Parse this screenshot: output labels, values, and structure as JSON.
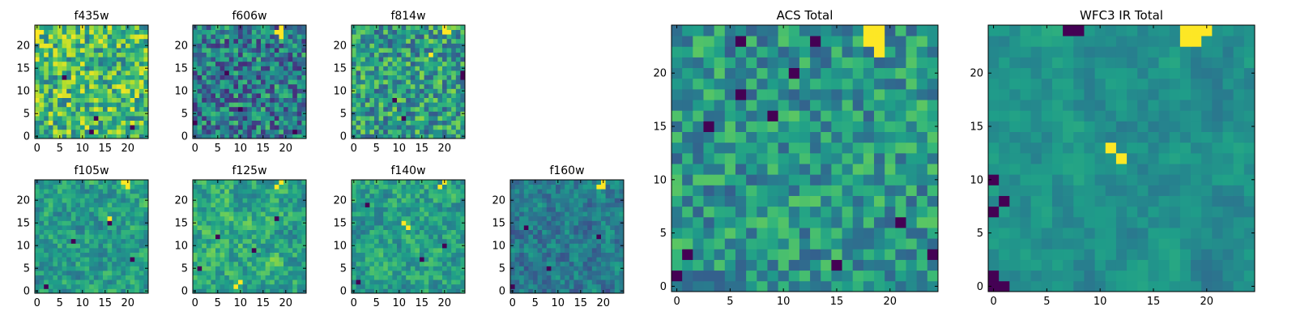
{
  "figure": {
    "colormap": "viridis",
    "frame_color": "#000000"
  },
  "chart_data": [
    {
      "type": "heatmap",
      "title": "f435w",
      "grid_size": [
        25,
        25
      ],
      "xticks": [
        0,
        5,
        10,
        15,
        20
      ],
      "yticks": [
        0,
        5,
        10,
        15,
        20
      ],
      "xlim": [
        -0.5,
        24.5
      ],
      "ylim": [
        -0.5,
        24.5
      ],
      "seed": 11,
      "base": 0.68,
      "noise": 0.3,
      "smooth": 0,
      "bright_spots": [
        [
          23,
          1
        ],
        [
          22,
          0
        ],
        [
          23,
          0
        ]
      ],
      "dark_spots": [
        [
          1,
          12
        ],
        [
          4,
          13
        ],
        [
          2,
          21
        ],
        [
          13,
          6
        ]
      ]
    },
    {
      "type": "heatmap",
      "title": "f606w",
      "grid_size": [
        25,
        25
      ],
      "xticks": [
        0,
        5,
        10,
        15,
        20
      ],
      "yticks": [
        0,
        5,
        10,
        15,
        20
      ],
      "xlim": [
        -0.5,
        24.5
      ],
      "ylim": [
        -0.5,
        24.5
      ],
      "seed": 23,
      "base": 0.42,
      "noise": 0.3,
      "smooth": 0,
      "bright_spots": [
        [
          23,
          18
        ],
        [
          23,
          19
        ],
        [
          24,
          19
        ],
        [
          22,
          19
        ]
      ],
      "dark_spots": [
        [
          3,
          0
        ],
        [
          14,
          7
        ],
        [
          6,
          10
        ],
        [
          1,
          22
        ]
      ]
    },
    {
      "type": "heatmap",
      "title": "f814w",
      "grid_size": [
        25,
        25
      ],
      "xticks": [
        0,
        5,
        10,
        15,
        20
      ],
      "yticks": [
        0,
        5,
        10,
        15,
        20
      ],
      "xlim": [
        -0.5,
        24.5
      ],
      "ylim": [
        -0.5,
        24.5
      ],
      "seed": 37,
      "base": 0.55,
      "noise": 0.28,
      "smooth": 0,
      "bright_spots": [
        [
          23,
          20
        ],
        [
          24,
          20
        ],
        [
          23,
          21
        ],
        [
          18,
          17
        ]
      ],
      "dark_spots": [
        [
          14,
          24
        ],
        [
          13,
          24
        ],
        [
          4,
          11
        ],
        [
          8,
          9
        ]
      ]
    },
    {
      "type": "heatmap",
      "title": "f105w",
      "grid_size": [
        25,
        25
      ],
      "xticks": [
        0,
        5,
        10,
        15,
        20
      ],
      "yticks": [
        0,
        5,
        10,
        15,
        20
      ],
      "xlim": [
        -0.5,
        24.5
      ],
      "ylim": [
        -0.5,
        24.5
      ],
      "seed": 41,
      "base": 0.55,
      "noise": 0.26,
      "smooth": 1,
      "bright_spots": [
        [
          23,
          20
        ],
        [
          24,
          19
        ],
        [
          24,
          20
        ],
        [
          16,
          16
        ]
      ],
      "dark_spots": [
        [
          1,
          2
        ],
        [
          11,
          8
        ],
        [
          15,
          16
        ],
        [
          7,
          21
        ]
      ]
    },
    {
      "type": "heatmap",
      "title": "f125w",
      "grid_size": [
        25,
        25
      ],
      "xticks": [
        0,
        5,
        10,
        15,
        20
      ],
      "yticks": [
        0,
        5,
        10,
        15,
        20
      ],
      "xlim": [
        -0.5,
        24.5
      ],
      "ylim": [
        -0.5,
        24.5
      ],
      "seed": 53,
      "base": 0.6,
      "noise": 0.28,
      "smooth": 1,
      "bright_spots": [
        [
          23,
          18
        ],
        [
          24,
          19
        ],
        [
          1,
          9
        ],
        [
          2,
          10
        ]
      ],
      "dark_spots": [
        [
          5,
          1
        ],
        [
          12,
          5
        ],
        [
          9,
          13
        ],
        [
          16,
          18
        ]
      ]
    },
    {
      "type": "heatmap",
      "title": "f140w",
      "grid_size": [
        25,
        25
      ],
      "xticks": [
        0,
        5,
        10,
        15,
        20
      ],
      "yticks": [
        0,
        5,
        10,
        15,
        20
      ],
      "xlim": [
        -0.5,
        24.5
      ],
      "ylim": [
        -0.5,
        24.5
      ],
      "seed": 67,
      "base": 0.57,
      "noise": 0.26,
      "smooth": 1,
      "bright_spots": [
        [
          23,
          19
        ],
        [
          24,
          20
        ],
        [
          14,
          12
        ],
        [
          15,
          11
        ]
      ],
      "dark_spots": [
        [
          2,
          1
        ],
        [
          19,
          3
        ],
        [
          7,
          15
        ],
        [
          10,
          20
        ]
      ]
    },
    {
      "type": "heatmap",
      "title": "f160w",
      "grid_size": [
        25,
        25
      ],
      "xticks": [
        0,
        5,
        10,
        15,
        20
      ],
      "yticks": [
        0,
        5,
        10,
        15,
        20
      ],
      "xlim": [
        -0.5,
        24.5
      ],
      "ylim": [
        -0.5,
        24.5
      ],
      "seed": 79,
      "base": 0.42,
      "noise": 0.24,
      "smooth": 1,
      "bright_spots": [
        [
          23,
          19
        ],
        [
          24,
          20
        ],
        [
          23,
          20
        ]
      ],
      "dark_spots": [
        [
          1,
          0
        ],
        [
          14,
          3
        ],
        [
          5,
          8
        ],
        [
          12,
          19
        ]
      ]
    },
    {
      "type": "heatmap",
      "title": "ACS Total",
      "grid_size": [
        25,
        25
      ],
      "xticks": [
        0,
        5,
        10,
        15,
        20
      ],
      "yticks": [
        0,
        5,
        10,
        15,
        20
      ],
      "xlim": [
        -0.5,
        24.5
      ],
      "ylim": [
        -0.5,
        24.5
      ],
      "seed": 97,
      "base": 0.52,
      "noise": 0.22,
      "smooth": 0,
      "bright_spots": [
        [
          23,
          18
        ],
        [
          23,
          19
        ],
        [
          24,
          18
        ],
        [
          24,
          19
        ],
        [
          22,
          19
        ]
      ],
      "dark_spots": [
        [
          1,
          0
        ],
        [
          3,
          24
        ],
        [
          3,
          1
        ],
        [
          6,
          21
        ],
        [
          16,
          9
        ],
        [
          20,
          11
        ],
        [
          23,
          13
        ],
        [
          18,
          6
        ],
        [
          15,
          3
        ],
        [
          23,
          6
        ],
        [
          2,
          15
        ]
      ]
    },
    {
      "type": "heatmap",
      "title": "WFC3 IR Total",
      "grid_size": [
        25,
        25
      ],
      "xticks": [
        0,
        5,
        10,
        15,
        20
      ],
      "yticks": [
        0,
        5,
        10,
        15,
        20
      ],
      "xlim": [
        -0.5,
        24.5
      ],
      "ylim": [
        -0.5,
        24.5
      ],
      "seed": 131,
      "base": 0.5,
      "noise": 0.2,
      "smooth": 2,
      "bright_spots": [
        [
          23,
          18
        ],
        [
          24,
          18
        ],
        [
          24,
          19
        ],
        [
          23,
          19
        ],
        [
          24,
          20
        ],
        [
          13,
          11
        ],
        [
          12,
          12
        ]
      ],
      "dark_spots": [
        [
          0,
          0
        ],
        [
          1,
          0
        ],
        [
          0,
          1
        ],
        [
          7,
          0
        ],
        [
          8,
          1
        ],
        [
          10,
          0
        ],
        [
          24,
          7
        ],
        [
          24,
          8
        ]
      ]
    }
  ]
}
